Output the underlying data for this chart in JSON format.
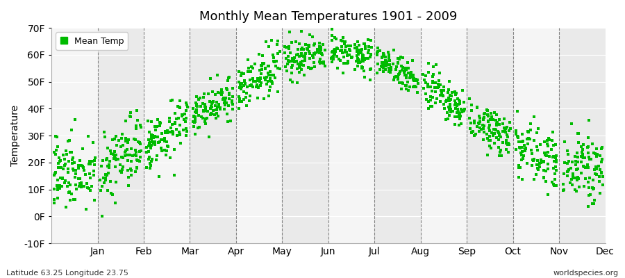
{
  "title": "Monthly Mean Temperatures 1901 - 2009",
  "ylabel": "Temperature",
  "subtitle_left": "Latitude 63.25 Longitude 23.75",
  "subtitle_right": "worldspecies.org",
  "ylim": [
    -10,
    70
  ],
  "yticks": [
    -10,
    0,
    10,
    20,
    30,
    40,
    50,
    60,
    70
  ],
  "ytick_labels": [
    "-10F",
    "0F",
    "10F",
    "20F",
    "30F",
    "40F",
    "50F",
    "60F",
    "70F"
  ],
  "months": [
    "Jan",
    "Feb",
    "Mar",
    "Apr",
    "May",
    "Jun",
    "Jul",
    "Aug",
    "Sep",
    "Oct",
    "Nov",
    "Dec"
  ],
  "month_mean_F": [
    17,
    17,
    26,
    36,
    46,
    57,
    62,
    59,
    49,
    38,
    28,
    20
  ],
  "month_std_F": [
    7,
    7,
    5,
    4,
    4,
    4,
    3,
    3,
    4,
    4,
    5,
    6
  ],
  "n_years": 109,
  "marker_color": "#00bb00",
  "marker_size": 5,
  "legend_label": "Mean Temp",
  "bg_color_light": "#f5f5f5",
  "bg_color_dark": "#eaeaea",
  "grid_color": "#555555",
  "seed": 42
}
